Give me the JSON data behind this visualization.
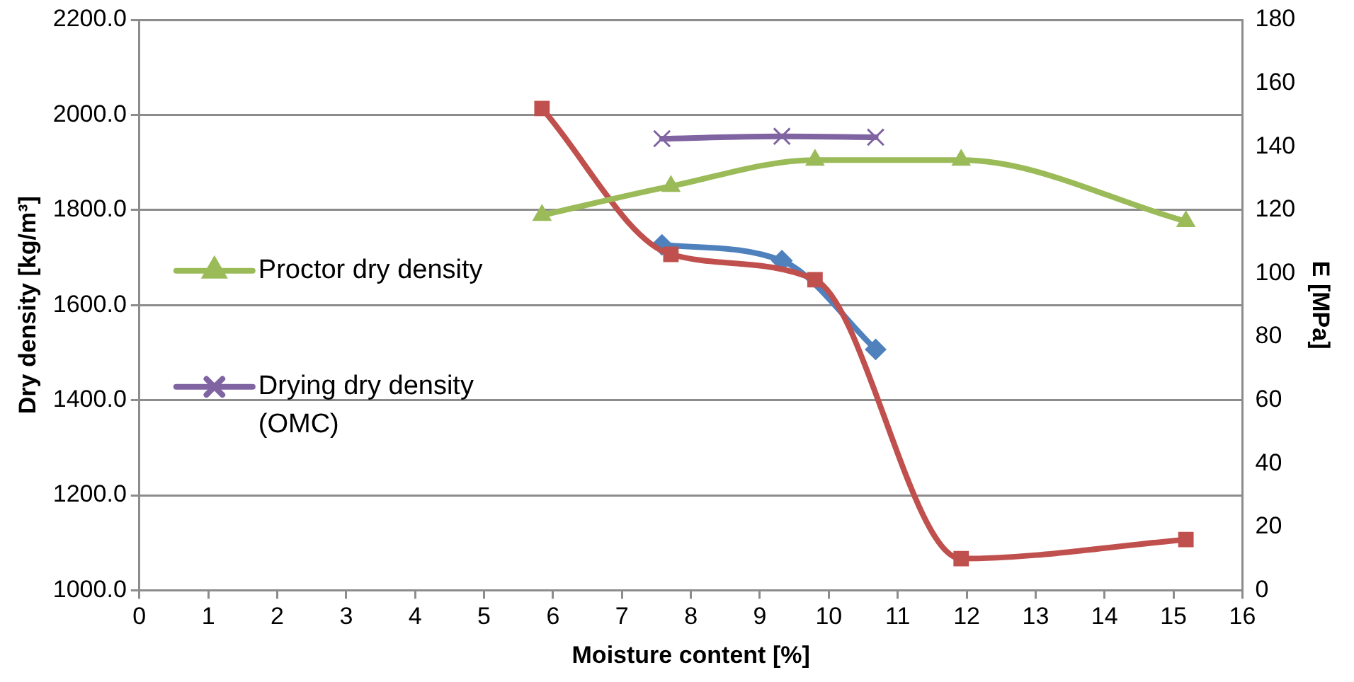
{
  "chart_data": {
    "type": "line",
    "xlabel": "Moisture content [%]",
    "ylabel": "Dry density [kg/m³]",
    "y2label": "E [MPa]",
    "xlim": [
      0,
      16
    ],
    "xticks": [
      0,
      1,
      2,
      3,
      4,
      5,
      6,
      7,
      8,
      9,
      10,
      11,
      12,
      13,
      14,
      15,
      16
    ],
    "ylim": [
      1000,
      2200
    ],
    "yticks": [
      {
        "value": 1000,
        "label": "1000.0"
      },
      {
        "value": 1200,
        "label": "1200.0"
      },
      {
        "value": 1400,
        "label": "1400.0"
      },
      {
        "value": 1600,
        "label": "1600.0"
      },
      {
        "value": 1800,
        "label": "1800.0"
      },
      {
        "value": 2000,
        "label": "2000.0"
      },
      {
        "value": 2200,
        "label": "2200.0"
      }
    ],
    "y2lim": [
      0,
      180
    ],
    "y2ticks": [
      0,
      20,
      40,
      60,
      80,
      100,
      120,
      140,
      160,
      180
    ],
    "grid": "y",
    "legend": "left",
    "series": [
      {
        "name": "Proctor dry density",
        "color": "#9bbb59",
        "marker": "triangle",
        "x": [
          5.84,
          7.71,
          9.8,
          11.92,
          15.18
        ],
        "values": [
          1789,
          1850,
          1905,
          1905,
          1776
        ]
      },
      {
        "name": "Drying dry density (OMC)",
        "color": "#8064a2",
        "marker": "cross",
        "x": [
          7.58,
          9.32,
          10.68
        ],
        "values": [
          1950,
          1955,
          1953
        ]
      },
      {
        "color": "#c0504d",
        "marker": "square",
        "axis": "y2",
        "x": [
          5.84,
          7.71,
          9.8,
          11.92,
          15.18
        ],
        "values": [
          152,
          106,
          98,
          10,
          16
        ]
      },
      {
        "color": "#4f81bd",
        "marker": "diamond",
        "axis": "y2",
        "x": [
          7.58,
          9.32,
          10.68
        ],
        "values": [
          109,
          104,
          76
        ]
      }
    ]
  }
}
